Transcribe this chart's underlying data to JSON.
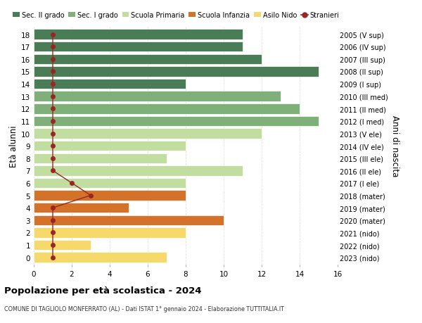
{
  "ages": [
    18,
    17,
    16,
    15,
    14,
    13,
    12,
    11,
    10,
    9,
    8,
    7,
    6,
    5,
    4,
    3,
    2,
    1,
    0
  ],
  "right_labels": [
    "2005 (V sup)",
    "2006 (IV sup)",
    "2007 (III sup)",
    "2008 (II sup)",
    "2009 (I sup)",
    "2010 (III med)",
    "2011 (II med)",
    "2012 (I med)",
    "2013 (V ele)",
    "2014 (IV ele)",
    "2015 (III ele)",
    "2016 (II ele)",
    "2017 (I ele)",
    "2018 (mater)",
    "2019 (mater)",
    "2020 (mater)",
    "2021 (nido)",
    "2022 (nido)",
    "2023 (nido)"
  ],
  "bar_values": [
    11,
    11,
    12,
    15,
    8,
    13,
    14,
    15,
    12,
    8,
    7,
    11,
    8,
    8,
    5,
    10,
    8,
    3,
    7
  ],
  "bar_colors": [
    "#4a7c55",
    "#4a7c55",
    "#4a7c55",
    "#4a7c55",
    "#4a7c55",
    "#7fb07a",
    "#7fb07a",
    "#7fb07a",
    "#c2dda0",
    "#c2dda0",
    "#c2dda0",
    "#c2dda0",
    "#c2dda0",
    "#d4722a",
    "#d4722a",
    "#d4722a",
    "#f5d96a",
    "#f5d96a",
    "#f5d96a"
  ],
  "stranieri_ages": [
    18,
    17,
    16,
    15,
    14,
    13,
    12,
    11,
    10,
    9,
    8,
    7,
    6,
    5,
    4,
    3,
    2,
    1,
    0
  ],
  "stranieri_x": [
    1,
    1,
    1,
    1,
    1,
    1,
    1,
    1,
    1,
    1,
    1,
    1,
    2,
    3,
    1,
    1,
    1,
    1,
    1
  ],
  "stranieri_color": "#9b2525",
  "legend_labels": [
    "Sec. II grado",
    "Sec. I grado",
    "Scuola Primaria",
    "Scuola Infanzia",
    "Asilo Nido",
    "Stranieri"
  ],
  "legend_colors": [
    "#4a7c55",
    "#7fb07a",
    "#c2dda0",
    "#d4722a",
    "#f5d96a",
    "#9b2525"
  ],
  "ylabel_left": "Età alunni",
  "ylabel_right": "Anni di nascita",
  "xlim": [
    0,
    16
  ],
  "xticks": [
    0,
    2,
    4,
    6,
    8,
    10,
    12,
    14,
    16
  ],
  "title": "Popolazione per età scolastica - 2024",
  "subtitle": "COMUNE DI TAGLIOLO MONFERRATO (AL) - Dati ISTAT 1° gennaio 2024 - Elaborazione TUTTITALIA.IT",
  "background_color": "#ffffff",
  "grid_color": "#e0e0e0",
  "bar_height": 0.82
}
